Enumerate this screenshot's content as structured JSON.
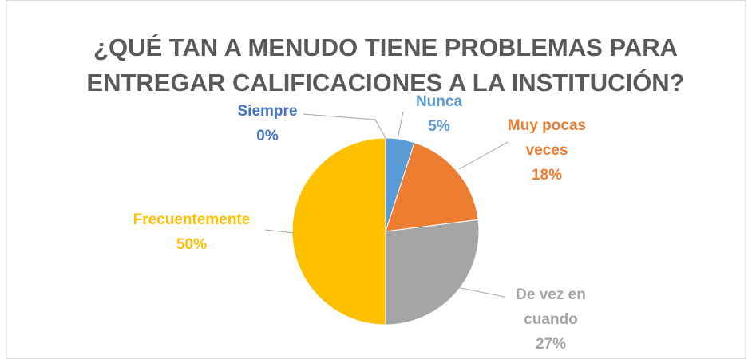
{
  "chart_data": {
    "type": "pie",
    "title": "¿QUÉ TAN A MENUDO TIENE PROBLEMAS PARA ENTREGAR CALIFICACIONES A LA INSTITUCIÓN?",
    "categories": [
      "Nunca",
      "Muy pocas veces",
      "De vez en cuando",
      "Frecuentemente",
      "Siempre"
    ],
    "values": [
      5,
      18,
      27,
      50,
      0
    ],
    "value_labels": [
      "5%",
      "18%",
      "27%",
      "50%",
      "0%"
    ],
    "colors": [
      "#5b9bd5",
      "#ed7d31",
      "#a5a5a5",
      "#ffc000",
      "#4472c4"
    ]
  }
}
